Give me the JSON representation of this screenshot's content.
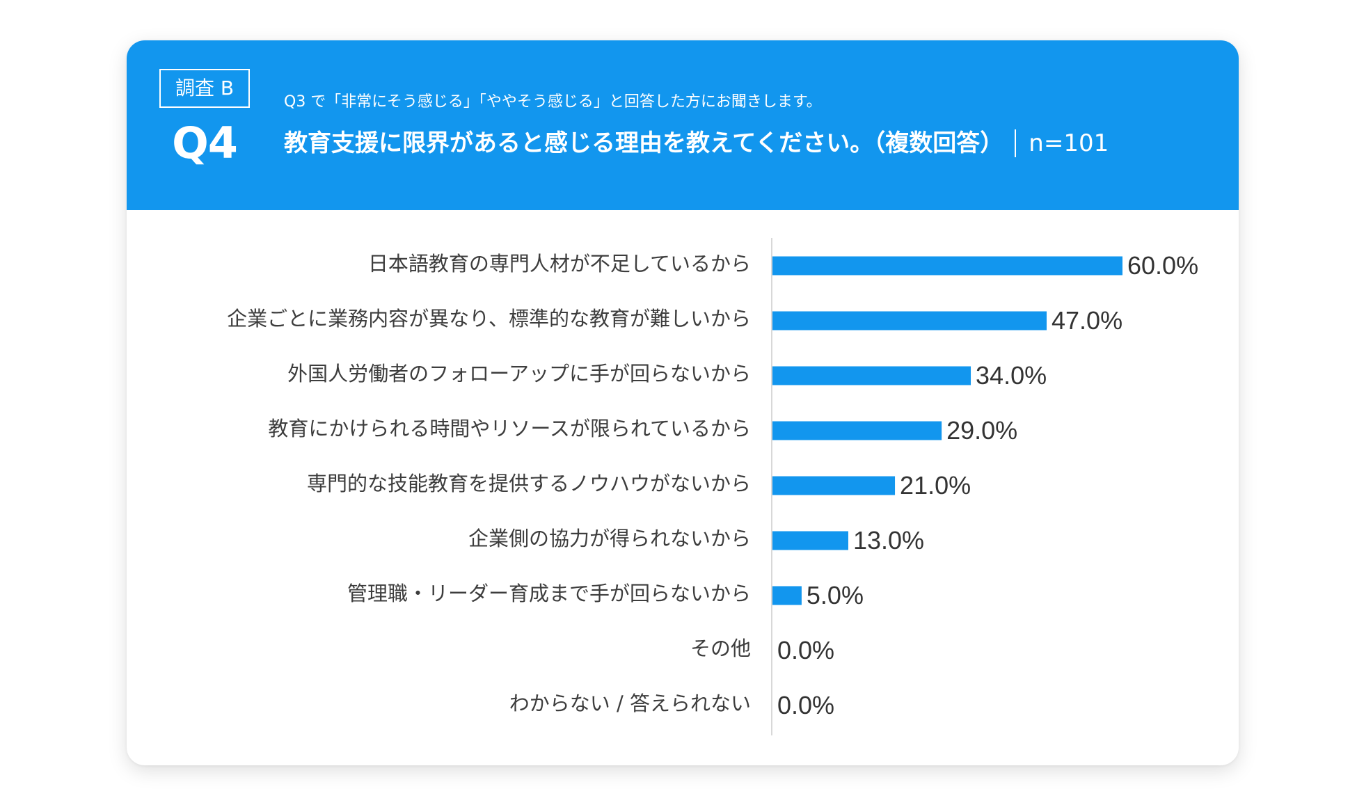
{
  "header": {
    "survey_badge": "調査 B",
    "question_number": "Q4",
    "pre_question": "Q3 で「非常にそう感じる」「ややそう感じる」と回答した方にお聞きします。",
    "question": "教育支援に限界があると感じる理由を教えてください。（複数回答）",
    "sample_size": "n=101"
  },
  "colors": {
    "accent": "#1296ee",
    "text": "#3d3d3d"
  },
  "chart_data": {
    "type": "bar",
    "orientation": "horizontal",
    "title": "教育支援に限界があると感じる理由を教えてください。（複数回答）",
    "categories": [
      "日本語教育の専門人材が不足しているから",
      "企業ごとに業務内容が異なり、標準的な教育が難しいから",
      "外国人労働者のフォローアップに手が回らないから",
      "教育にかけられる時間やリソースが限られているから",
      "専門的な技能教育を提供するノウハウがないから",
      "企業側の協力が得られないから",
      "管理職・リーダー育成まで手が回らないから",
      "その他",
      "わからない / 答えられない"
    ],
    "values": [
      60.0,
      47.0,
      34.0,
      29.0,
      21.0,
      13.0,
      5.0,
      0.0,
      0.0
    ],
    "value_labels": [
      "60.0%",
      "47.0%",
      "34.0%",
      "29.0%",
      "21.0%",
      "13.0%",
      "5.0%",
      "0.0%",
      "0.0%"
    ],
    "unit": "%",
    "xlim": [
      0,
      100
    ],
    "grid": false,
    "legend": "none"
  }
}
